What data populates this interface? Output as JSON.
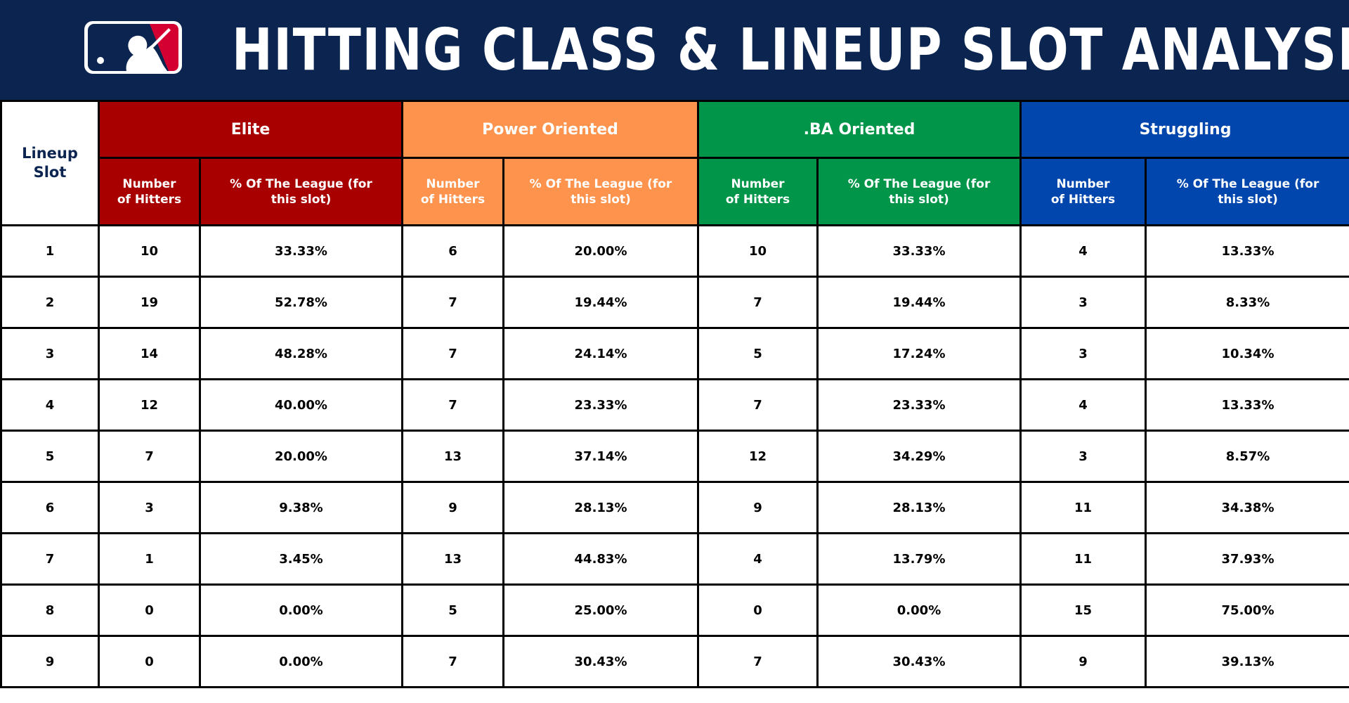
{
  "header": {
    "title": "HITTING CLASS & LINEUP SLOT ANALYSIS",
    "logo_icon": "mlb-batter-logo-icon"
  },
  "table": {
    "corner_label": "Lineup Slot",
    "groups": [
      {
        "label": "Elite",
        "color": "#a80000"
      },
      {
        "label": "Power Oriented",
        "color": "#fd934d"
      },
      {
        "label": ".BA Oriented",
        "color": "#009548"
      },
      {
        "label": "Struggling",
        "color": "#0046ad"
      }
    ],
    "sub_headers": {
      "count": "Number of Hitters",
      "pct": "% Of The League (for this slot)"
    },
    "rows": [
      {
        "slot": "1",
        "elite_n": "10",
        "elite_pct": "33.33%",
        "power_n": "6",
        "power_pct": "20.00%",
        "ba_n": "10",
        "ba_pct": "33.33%",
        "strug_n": "4",
        "strug_pct": "13.33%"
      },
      {
        "slot": "2",
        "elite_n": "19",
        "elite_pct": "52.78%",
        "power_n": "7",
        "power_pct": "19.44%",
        "ba_n": "7",
        "ba_pct": "19.44%",
        "strug_n": "3",
        "strug_pct": "8.33%"
      },
      {
        "slot": "3",
        "elite_n": "14",
        "elite_pct": "48.28%",
        "power_n": "7",
        "power_pct": "24.14%",
        "ba_n": "5",
        "ba_pct": "17.24%",
        "strug_n": "3",
        "strug_pct": "10.34%"
      },
      {
        "slot": "4",
        "elite_n": "12",
        "elite_pct": "40.00%",
        "power_n": "7",
        "power_pct": "23.33%",
        "ba_n": "7",
        "ba_pct": "23.33%",
        "strug_n": "4",
        "strug_pct": "13.33%"
      },
      {
        "slot": "5",
        "elite_n": "7",
        "elite_pct": "20.00%",
        "power_n": "13",
        "power_pct": "37.14%",
        "ba_n": "12",
        "ba_pct": "34.29%",
        "strug_n": "3",
        "strug_pct": "8.57%"
      },
      {
        "slot": "6",
        "elite_n": "3",
        "elite_pct": "9.38%",
        "power_n": "9",
        "power_pct": "28.13%",
        "ba_n": "9",
        "ba_pct": "28.13%",
        "strug_n": "11",
        "strug_pct": "34.38%"
      },
      {
        "slot": "7",
        "elite_n": "1",
        "elite_pct": "3.45%",
        "power_n": "13",
        "power_pct": "44.83%",
        "ba_n": "4",
        "ba_pct": "13.79%",
        "strug_n": "11",
        "strug_pct": "37.93%"
      },
      {
        "slot": "8",
        "elite_n": "0",
        "elite_pct": "0.00%",
        "power_n": "5",
        "power_pct": "25.00%",
        "ba_n": "0",
        "ba_pct": "0.00%",
        "strug_n": "15",
        "strug_pct": "75.00%"
      },
      {
        "slot": "9",
        "elite_n": "0",
        "elite_pct": "0.00%",
        "power_n": "7",
        "power_pct": "30.43%",
        "ba_n": "7",
        "ba_pct": "30.43%",
        "strug_n": "9",
        "strug_pct": "39.13%"
      }
    ]
  }
}
